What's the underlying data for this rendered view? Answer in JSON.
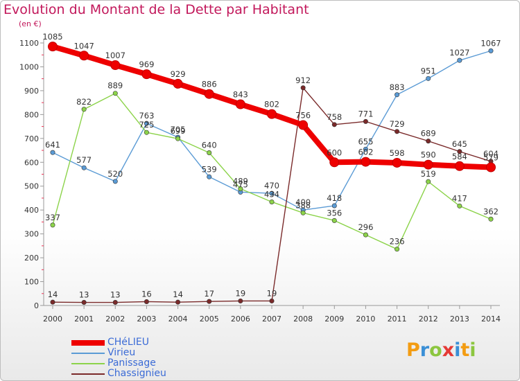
{
  "title": "Evolution du Montant de la Dette par Habitant",
  "unit_label": "(en €)",
  "logo": {
    "text": "Proxiti",
    "letters": [
      {
        "ch": "P",
        "color": "#f39c12"
      },
      {
        "ch": "r",
        "color": "#3a8fd6"
      },
      {
        "ch": "o",
        "color": "#8cc63f"
      },
      {
        "ch": "x",
        "color": "#e53935"
      },
      {
        "ch": "i",
        "color": "#3a8fd6"
      },
      {
        "ch": "t",
        "color": "#f39c12"
      },
      {
        "ch": "i",
        "color": "#8cc63f"
      }
    ]
  },
  "chart_data": {
    "type": "line",
    "title": "Evolution du Montant de la Dette par Habitant",
    "ylabel": "(en €)",
    "xlabel": "",
    "ylim": [
      0,
      1100
    ],
    "yticks": [
      0,
      100,
      200,
      300,
      400,
      500,
      600,
      700,
      800,
      900,
      1000,
      1100
    ],
    "grid": false,
    "legend_position": "bottom-left",
    "x": [
      "2000",
      "2001",
      "2002",
      "2003",
      "2004",
      "2005",
      "2006",
      "2007",
      "2008",
      "2009",
      "2010",
      "2011",
      "2012",
      "2013",
      "2014"
    ],
    "series": [
      {
        "name": "CHéLIEU",
        "color": "#ee0000",
        "emphasis": true,
        "values": [
          1085,
          1047,
          1007,
          969,
          929,
          886,
          843,
          802,
          756,
          600,
          602,
          598,
          590,
          584,
          579
        ],
        "labels": [
          "1085",
          "1047",
          "1007",
          "969",
          "929",
          "886",
          "843",
          "802",
          "756",
          "600",
          "602",
          "598",
          "590",
          "584",
          "579"
        ]
      },
      {
        "name": "Virieu",
        "color": "#5b9bd5",
        "emphasis": false,
        "values": [
          641,
          577,
          520,
          763,
          705,
          539,
          475,
          470,
          400,
          418,
          655,
          883,
          951,
          1027,
          1067
        ],
        "labels": [
          "641",
          "577",
          "520",
          "763",
          "705",
          "539",
          "475",
          "470",
          "400",
          "418",
          "655",
          "883",
          "951",
          "1027",
          "1067"
        ]
      },
      {
        "name": "Panissage",
        "color": "#8cd34a",
        "emphasis": false,
        "values": [
          337,
          822,
          889,
          725,
          699,
          640,
          489,
          434,
          388,
          356,
          296,
          236,
          519,
          417,
          362
        ],
        "labels": [
          "337",
          "822",
          "889",
          "725",
          "699",
          "640",
          "489",
          "434",
          "388",
          "356",
          "296",
          "236",
          "519",
          "417",
          "362"
        ]
      },
      {
        "name": "Chassignieu",
        "color": "#7a2a2a",
        "emphasis": false,
        "values": [
          14,
          13,
          13,
          16,
          14,
          17,
          19,
          19,
          912,
          758,
          771,
          729,
          689,
          645,
          604
        ],
        "labels": [
          "14",
          "13",
          "13",
          "16",
          "14",
          "17",
          "19",
          "19",
          "912",
          "758",
          "771",
          "729",
          "689",
          "645",
          "604"
        ]
      }
    ]
  }
}
